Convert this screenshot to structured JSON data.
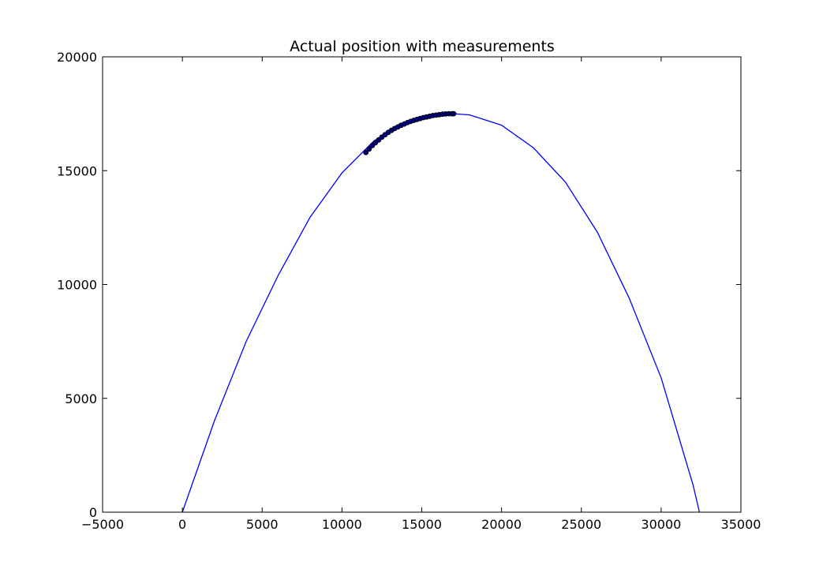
{
  "chart_data": {
    "type": "line",
    "title": "Actual position with measurements",
    "xlabel": "",
    "ylabel": "",
    "xlim": [
      -5000,
      35000
    ],
    "ylim": [
      0,
      20000
    ],
    "xticks": [
      -5000,
      0,
      5000,
      10000,
      15000,
      20000,
      25000,
      30000,
      35000
    ],
    "yticks": [
      0,
      5000,
      10000,
      15000,
      20000
    ],
    "grid": false,
    "series": [
      {
        "kind": "line",
        "color": "#0000ff",
        "x": [
          0,
          2000,
          4000,
          6000,
          8000,
          10000,
          12000,
          14000,
          16000,
          17000,
          18000,
          20000,
          22000,
          24000,
          26000,
          28000,
          30000,
          32000,
          32400
        ],
        "y": [
          0,
          4000,
          7500,
          10400,
          12950,
          14900,
          16300,
          17150,
          17500,
          17500,
          17450,
          17000,
          16000,
          14500,
          12300,
          9400,
          5900,
          1200,
          0
        ]
      },
      {
        "kind": "scatter",
        "color": "#00007a",
        "x": [
          11500,
          11700,
          11900,
          12100,
          12300,
          12500,
          12700,
          12900,
          13100,
          13300,
          13500,
          13700,
          13900,
          14100,
          14300,
          14500,
          14700,
          14900,
          15100,
          15300,
          15500,
          15700,
          15900,
          16100,
          16300,
          16500,
          16700,
          16900,
          17000
        ],
        "y": [
          15800,
          15950,
          16100,
          16230,
          16350,
          16470,
          16580,
          16680,
          16770,
          16850,
          16920,
          16990,
          17050,
          17110,
          17160,
          17210,
          17250,
          17290,
          17330,
          17360,
          17390,
          17420,
          17440,
          17460,
          17480,
          17490,
          17500,
          17500,
          17500
        ]
      }
    ]
  }
}
